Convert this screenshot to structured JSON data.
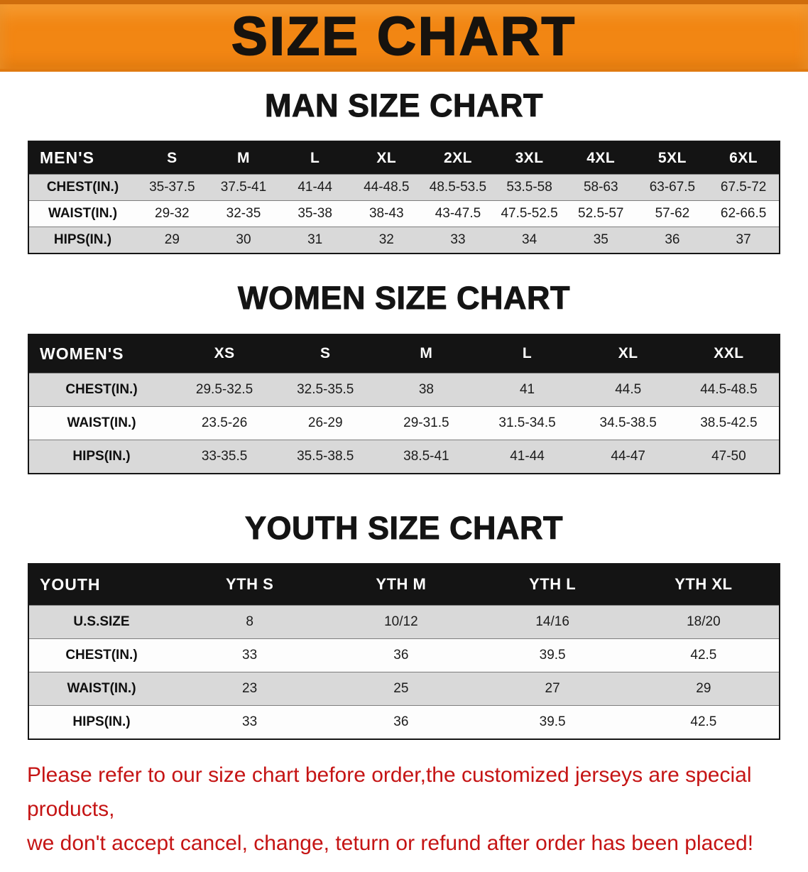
{
  "banner": {
    "title": "SIZE CHART"
  },
  "chart_data": [
    {
      "type": "table",
      "title": "MAN SIZE CHART",
      "header": [
        "MEN'S",
        "S",
        "M",
        "L",
        "XL",
        "2XL",
        "3XL",
        "4XL",
        "5XL",
        "6XL"
      ],
      "rows": [
        [
          "CHEST(IN.)",
          "35-37.5",
          "37.5-41",
          "41-44",
          "44-48.5",
          "48.5-53.5",
          "53.5-58",
          "58-63",
          "63-67.5",
          "67.5-72"
        ],
        [
          "WAIST(IN.)",
          "29-32",
          "32-35",
          "35-38",
          "38-43",
          "43-47.5",
          "47.5-52.5",
          "52.5-57",
          "57-62",
          "62-66.5"
        ],
        [
          "HIPS(IN.)",
          "29",
          "30",
          "31",
          "32",
          "33",
          "34",
          "35",
          "36",
          "37"
        ]
      ]
    },
    {
      "type": "table",
      "title": "WOMEN SIZE CHART",
      "header": [
        "WOMEN'S",
        "XS",
        "S",
        "M",
        "L",
        "XL",
        "XXL"
      ],
      "rows": [
        [
          "CHEST(IN.)",
          "29.5-32.5",
          "32.5-35.5",
          "38",
          "41",
          "44.5",
          "44.5-48.5"
        ],
        [
          "WAIST(IN.)",
          "23.5-26",
          "26-29",
          "29-31.5",
          "31.5-34.5",
          "34.5-38.5",
          "38.5-42.5"
        ],
        [
          "HIPS(IN.)",
          "33-35.5",
          "35.5-38.5",
          "38.5-41",
          "41-44",
          "44-47",
          "47-50"
        ]
      ]
    },
    {
      "type": "table",
      "title": "YOUTH SIZE CHART",
      "header": [
        "YOUTH",
        "YTH S",
        "YTH M",
        "YTH L",
        "YTH XL"
      ],
      "rows": [
        [
          "U.S.SIZE",
          "8",
          "10/12",
          "14/16",
          "18/20"
        ],
        [
          "CHEST(IN.)",
          "33",
          "36",
          "39.5",
          "42.5"
        ],
        [
          "WAIST(IN.)",
          "23",
          "25",
          "27",
          "29"
        ],
        [
          "HIPS(IN.)",
          "33",
          "36",
          "39.5",
          "42.5"
        ]
      ]
    }
  ],
  "disclaimer": {
    "lines": [
      "Please refer to our size chart before order,the customized jerseys are special products,",
      "we don't accept cancel, change, teturn or refund after order has been placed!"
    ]
  },
  "colors": {
    "banner_orange": "#f28613",
    "table_header_black": "#141414",
    "row_shade_gray": "#d9d9d9",
    "disclaimer_red": "#c51414",
    "title_black": "#141414"
  }
}
